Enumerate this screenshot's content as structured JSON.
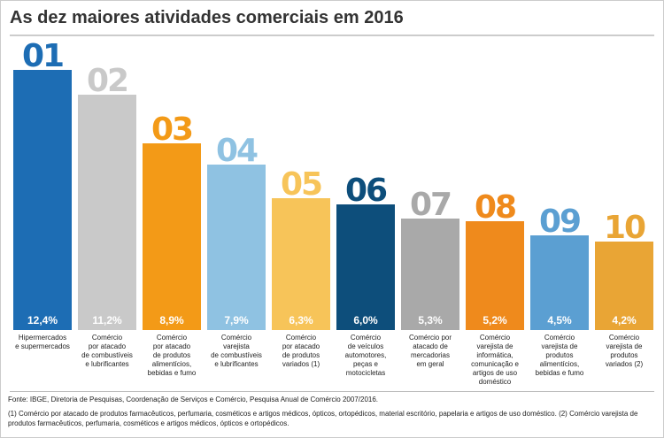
{
  "chart_data": {
    "type": "bar",
    "title": "As dez maiores atividades comerciais em 2016",
    "ranks": [
      "01",
      "02",
      "03",
      "04",
      "05",
      "06",
      "07",
      "08",
      "09",
      "10"
    ],
    "categories": [
      "Hipermercados\ne supermercados",
      "Comércio\npor atacado\nde combustíveis\ne lubrificantes",
      "Comércio\npor atacado\nde produtos\nalimentícios,\nbebidas e fumo",
      "Comércio\nvarejista\nde combustíveis\ne lubrificantes",
      "Comércio\npor atacado\nde produtos\nvariados (1)",
      "Comércio\nde veículos\nautomotores,\npeças e\nmotocicletas",
      "Comércio por\natacado de\nmercadorias\nem geral",
      "Comércio\nvarejista de\ninformática,\ncomunicação e\nartigos de uso\ndoméstico",
      "Comércio\nvarejista de\nprodutos\nalimentícios,\nbebidas e fumo",
      "Comércio\nvarejista de  produtos\nvariados (2)"
    ],
    "values": [
      12.4,
      11.2,
      8.9,
      7.9,
      6.3,
      6.0,
      5.3,
      5.2,
      4.5,
      4.2
    ],
    "value_labels": [
      "12,4%",
      "11,2%",
      "8,9%",
      "7,9%",
      "6,3%",
      "6,0%",
      "5,3%",
      "5,2%",
      "4,5%",
      "4,2%"
    ],
    "colors": [
      "#1d6db4",
      "#c9c9c9",
      "#f39a17",
      "#8fc2e2",
      "#f7c459",
      "#0d4e7b",
      "#a9a9a9",
      "#ef8a1c",
      "#5b9fd2",
      "#e9a535"
    ],
    "source": "Fonte: IBGE, Diretoria de Pesquisas, Coordenação de Serviços e Comércio, Pesquisa Anual de Comércio 2007/2016.",
    "footnote": "(1) Comércio por atacado de produtos farmacêuticos, perfumaria, cosméticos e artigos médicos, ópticos, ortopédicos, material escritório, papelaria e artigos de uso doméstico. (2) Comércio varejista de produtos farmacêuticos, perfumaria, cosméticos e artigos médicos, ópticos e ortopédicos."
  }
}
